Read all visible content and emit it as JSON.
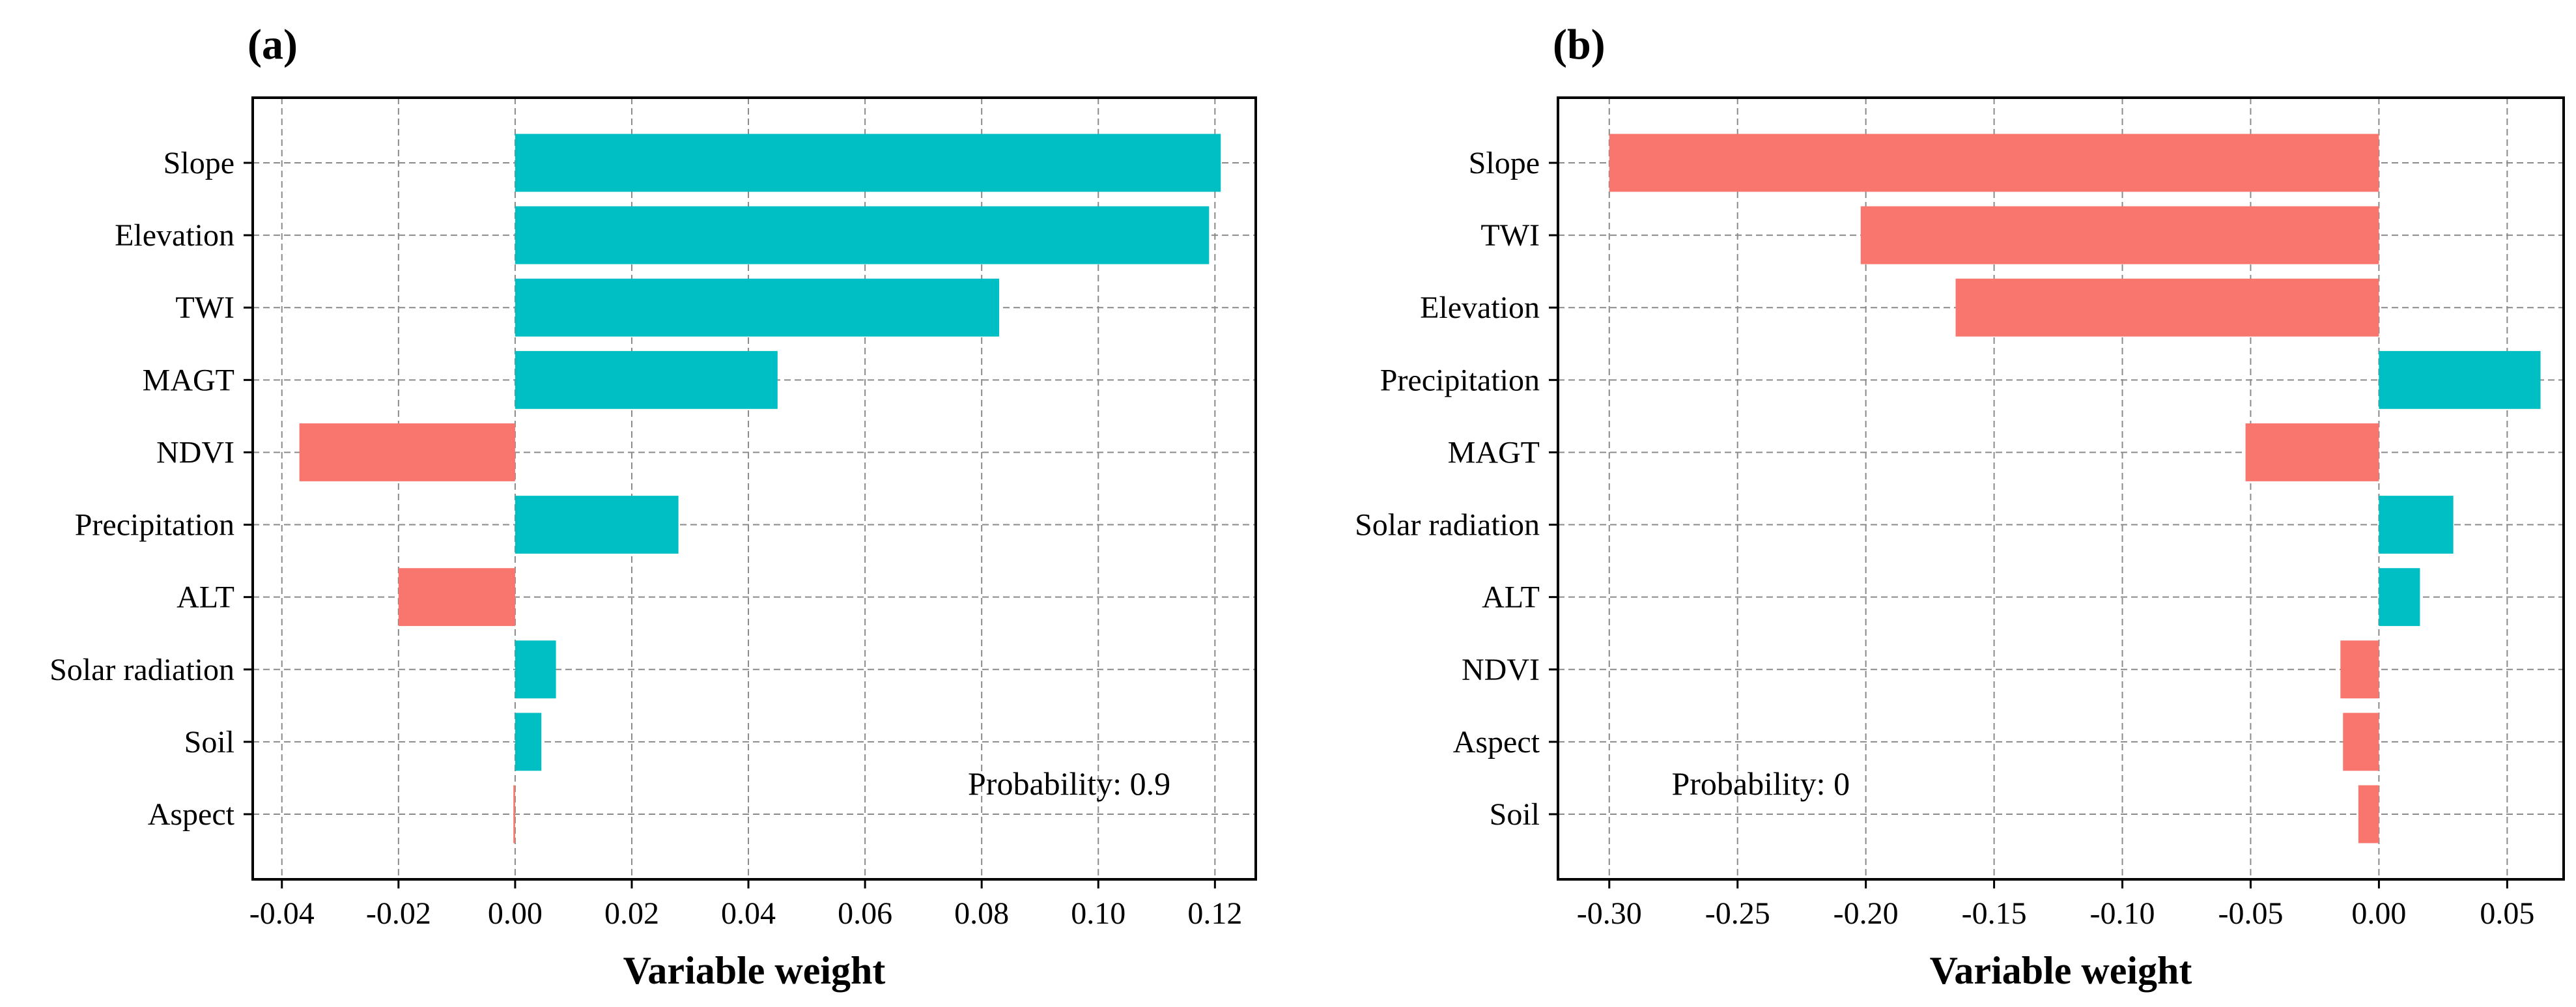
{
  "colors": {
    "positive": "#00BFC4",
    "negative": "#F8766D",
    "grid": "#8a8a8a",
    "frame": "#000000"
  },
  "chart_data": [
    {
      "type": "bar",
      "orientation": "horizontal",
      "panel_label": "(a)",
      "annotation": "Probability: 0.9",
      "annotation_position": "bottom-right",
      "xlabel": "Variable weight",
      "ylabel": "",
      "xlim": [
        -0.045,
        0.127
      ],
      "xticks": [
        -0.04,
        -0.02,
        0.0,
        0.02,
        0.04,
        0.06,
        0.08,
        0.1,
        0.12
      ],
      "xtick_labels": [
        "-0.04",
        "-0.02",
        "0.00",
        "0.02",
        "0.04",
        "0.06",
        "0.08",
        "0.10",
        "0.12"
      ],
      "grid": true,
      "categories": [
        "Slope",
        "Elevation",
        "TWI",
        "MAGT",
        "NDVI",
        "Precipitation",
        "ALT",
        "Solar radiation",
        "Soil",
        "Aspect"
      ],
      "values": [
        0.121,
        0.119,
        0.083,
        0.045,
        -0.037,
        0.028,
        -0.02,
        0.007,
        0.0045,
        -0.0003
      ]
    },
    {
      "type": "bar",
      "orientation": "horizontal",
      "panel_label": "(b)",
      "annotation": "Probability: 0",
      "annotation_position": "bottom-left",
      "xlabel": "Variable weight",
      "ylabel": "",
      "xlim": [
        -0.32,
        0.072
      ],
      "xticks": [
        -0.3,
        -0.25,
        -0.2,
        -0.15,
        -0.1,
        -0.05,
        0.0,
        0.05
      ],
      "xtick_labels": [
        "-0.30",
        "-0.25",
        "-0.20",
        "-0.15",
        "-0.10",
        "-0.05",
        "0.00",
        "0.05"
      ],
      "grid": true,
      "categories": [
        "Slope",
        "TWI",
        "Elevation",
        "Precipitation",
        "MAGT",
        "Solar radiation",
        "ALT",
        "NDVI",
        "Aspect",
        "Soil"
      ],
      "values": [
        -0.3,
        -0.202,
        -0.165,
        0.063,
        -0.052,
        0.029,
        0.016,
        -0.015,
        -0.014,
        -0.008
      ]
    }
  ]
}
